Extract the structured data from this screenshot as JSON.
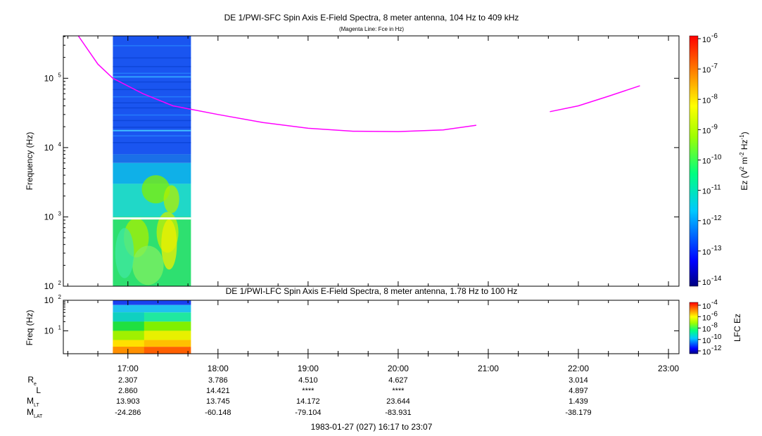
{
  "chart_data": [
    {
      "type": "heatmap",
      "title": "DE 1/PWI-SFC  Spin Axis E-Field Spectra, 8 meter antenna, 104 Hz to 409 kHz",
      "subtitle": "(Magenta Line: Fce in Hz)",
      "ylabel": "Frequency (Hz)",
      "yscale": "log",
      "ylim": [
        100,
        409000
      ],
      "y_ticks": [
        {
          "value": 100,
          "base": "10",
          "exp": "2"
        },
        {
          "value": 1000,
          "base": "10",
          "exp": "3"
        },
        {
          "value": 10000,
          "base": "10",
          "exp": "4"
        },
        {
          "value": 100000,
          "base": "10",
          "exp": "5"
        }
      ],
      "colorbar": {
        "label_pre": "Ez (V",
        "label_sup1": "2",
        "label_mid": " m",
        "label_sup2": "-2",
        "label_mid2": " Hz",
        "label_sup3": "-1",
        "label_post": ")",
        "scale": "log",
        "range": [
          1e-14,
          1e-06
        ],
        "ticks": [
          {
            "base": "10",
            "exp": "-6"
          },
          {
            "base": "10",
            "exp": "-7"
          },
          {
            "base": "10",
            "exp": "-8"
          },
          {
            "base": "10",
            "exp": "-9"
          },
          {
            "base": "10",
            "exp": "-10"
          },
          {
            "base": "10",
            "exp": "-11"
          },
          {
            "base": "10",
            "exp": "-12"
          },
          {
            "base": "10",
            "exp": "-13"
          },
          {
            "base": "10",
            "exp": "-14"
          }
        ]
      },
      "data_interval": {
        "start": "16:50",
        "end": "17:42"
      },
      "data_gap_frequency_hz": 950,
      "fce_line": {
        "color": "#ff00ff",
        "segments": [
          [
            [
              "16:27",
              409000
            ],
            [
              "16:40",
              160000
            ],
            [
              "16:50",
              100000
            ],
            [
              "17:10",
              60000
            ],
            [
              "17:30",
              40000
            ],
            [
              "18:00",
              30000
            ],
            [
              "18:30",
              23000
            ],
            [
              "19:00",
              19000
            ],
            [
              "19:30",
              17200
            ],
            [
              "20:00",
              17000
            ],
            [
              "20:30",
              18000
            ],
            [
              "20:52",
              21000
            ]
          ],
          [
            [
              "21:41",
              33000
            ],
            [
              "22:00",
              40000
            ],
            [
              "22:20",
              55000
            ],
            [
              "22:41",
              78000
            ]
          ]
        ]
      }
    },
    {
      "type": "heatmap",
      "title": "DE 1/PWI-LFC  Spin Axis E-Field Spectra, 8 meter antenna, 1.78 Hz to 100 Hz",
      "ylabel": "Freq (Hz)",
      "yscale": "log",
      "ylim": [
        1.78,
        100
      ],
      "y_ticks": [
        {
          "value": 10,
          "base": "10",
          "exp": "1"
        },
        {
          "value": 100,
          "base": "10",
          "exp": "2"
        }
      ],
      "colorbar": {
        "label": "LFC Ez",
        "scale": "log",
        "range": [
          1e-12,
          0.0001
        ],
        "ticks": [
          {
            "base": "10",
            "exp": "-4"
          },
          {
            "base": "10",
            "exp": "-6"
          },
          {
            "base": "10",
            "exp": "-8"
          },
          {
            "base": "10",
            "exp": "-10"
          },
          {
            "base": "10",
            "exp": "-12"
          }
        ]
      },
      "data_interval": {
        "start": "16:50",
        "end": "17:42"
      }
    }
  ],
  "x_axis": {
    "xlim": [
      "16:17",
      "23:07"
    ],
    "ticks": [
      "17:00",
      "18:00",
      "19:00",
      "20:00",
      "21:00",
      "22:00",
      "23:00"
    ]
  },
  "ephemeris": {
    "rows": [
      {
        "label": "R",
        "sub": "e",
        "values": [
          "2.307",
          "3.786",
          "4.510",
          "4.627",
          "",
          "3.014"
        ]
      },
      {
        "label": "L",
        "sub": "",
        "values": [
          "2.860",
          "14.421",
          "****",
          "****",
          "",
          "4.897"
        ]
      },
      {
        "label": "M",
        "sub": "LT",
        "values": [
          "13.903",
          "13.745",
          "14.172",
          "23.644",
          "",
          "1.439"
        ]
      },
      {
        "label": "M",
        "sub": "LAT",
        "values": [
          "-24.286",
          "-60.148",
          "-79.104",
          "-83.931",
          "",
          "-38.179"
        ]
      }
    ]
  },
  "footer": "1983-01-27 (027) 16:17 to 23:07"
}
